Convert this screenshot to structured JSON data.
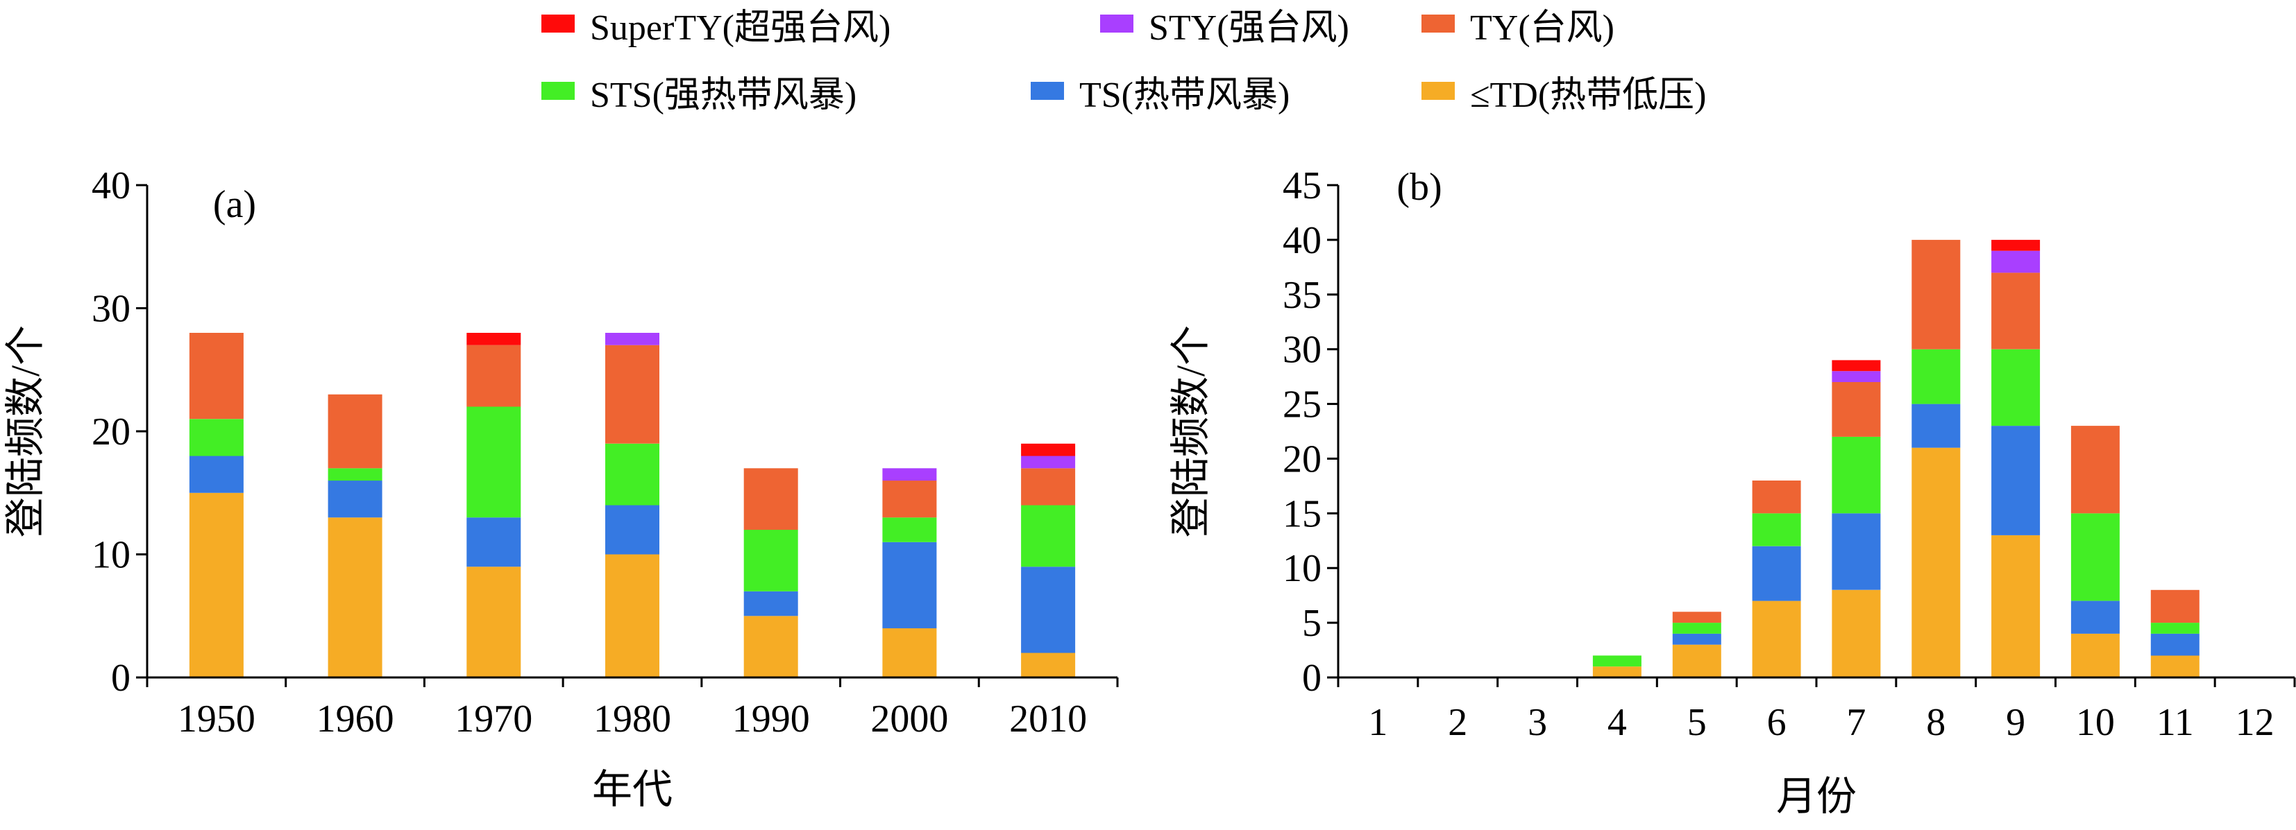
{
  "legend": {
    "items": [
      {
        "key": "superty",
        "label": "SuperTY(超强台风)",
        "color": "#ff0a0a"
      },
      {
        "key": "sty",
        "label": "STY(强台风)",
        "color": "#a93fff"
      },
      {
        "key": "ty",
        "label": "TY(台风)",
        "color": "#ee6433"
      },
      {
        "key": "sts",
        "label": "STS(强热带风暴)",
        "color": "#43ee25"
      },
      {
        "key": "ts",
        "label": "TS(热带风暴)",
        "color": "#3579e2"
      },
      {
        "key": "td",
        "label": "≤TD(热带低压)",
        "color": "#f6ac25"
      }
    ]
  },
  "chart_data": [
    {
      "type": "bar",
      "stacked": true,
      "panel_label": "(a)",
      "xlabel": "年代",
      "ylabel": "登陆频数/个",
      "ylim": [
        0,
        40
      ],
      "yticks": [
        0,
        10,
        20,
        30,
        40
      ],
      "categories": [
        "1950",
        "1960",
        "1970",
        "1980",
        "1990",
        "2000",
        "2010"
      ],
      "series": [
        {
          "name": "≤TD(热带低压)",
          "values": [
            15,
            13,
            9,
            10,
            5,
            4,
            2
          ]
        },
        {
          "name": "TS(热带风暴)",
          "values": [
            3,
            3,
            4,
            4,
            2,
            7,
            7
          ]
        },
        {
          "name": "STS(强热带风暴)",
          "values": [
            3,
            1,
            9,
            5,
            5,
            2,
            5
          ]
        },
        {
          "name": "TY(台风)",
          "values": [
            7,
            6,
            5,
            8,
            5,
            3,
            3
          ]
        },
        {
          "name": "STY(强台风)",
          "values": [
            0,
            0,
            0,
            1,
            0,
            1,
            1
          ]
        },
        {
          "name": "SuperTY(超强台风)",
          "values": [
            0,
            0,
            1,
            0,
            0,
            0,
            1
          ]
        }
      ]
    },
    {
      "type": "bar",
      "stacked": true,
      "panel_label": "(b)",
      "xlabel": "月份",
      "ylabel": "登陆频数/个",
      "ylim": [
        0,
        45
      ],
      "yticks": [
        0,
        5,
        10,
        15,
        20,
        25,
        30,
        35,
        40,
        45
      ],
      "categories": [
        "1",
        "2",
        "3",
        "4",
        "5",
        "6",
        "7",
        "8",
        "9",
        "10",
        "11",
        "12"
      ],
      "series": [
        {
          "name": "≤TD(热带低压)",
          "values": [
            0,
            0,
            0,
            1,
            3,
            7,
            8,
            21,
            13,
            4,
            2,
            0
          ]
        },
        {
          "name": "TS(热带风暴)",
          "values": [
            0,
            0,
            0,
            0,
            1,
            5,
            7,
            4,
            10,
            3,
            2,
            0
          ]
        },
        {
          "name": "STS(强热带风暴)",
          "values": [
            0,
            0,
            0,
            1,
            1,
            3,
            7,
            5,
            7,
            8,
            1,
            0
          ]
        },
        {
          "name": "TY(台风)",
          "values": [
            0,
            0,
            0,
            0,
            1,
            3,
            5,
            10,
            7,
            8,
            3,
            0
          ]
        },
        {
          "name": "STY(强台风)",
          "values": [
            0,
            0,
            0,
            0,
            0,
            0,
            1,
            0,
            2,
            0,
            0,
            0
          ]
        },
        {
          "name": "SuperTY(超强台风)",
          "values": [
            0,
            0,
            0,
            0,
            0,
            0,
            1,
            0,
            1,
            0,
            0,
            0
          ]
        }
      ]
    }
  ]
}
